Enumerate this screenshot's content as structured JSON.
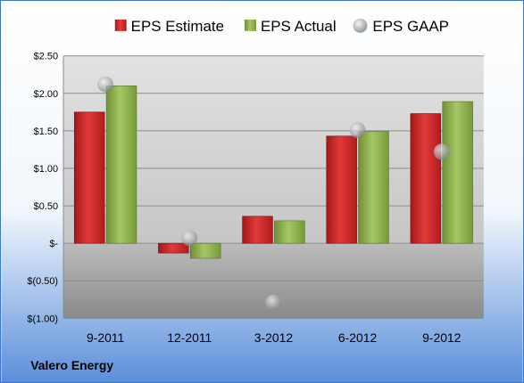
{
  "chart_data": {
    "type": "bar",
    "company": "Valero Energy",
    "categories": [
      "9-2011",
      "12-2011",
      "3-2012",
      "6-2012",
      "9-2012"
    ],
    "series": [
      {
        "name": "EPS Estimate",
        "kind": "bar",
        "color": "#d62728",
        "values": [
          1.75,
          -0.13,
          0.36,
          1.43,
          1.73
        ]
      },
      {
        "name": "EPS Actual",
        "kind": "bar",
        "color": "#8db04a",
        "values": [
          2.1,
          -0.2,
          0.3,
          1.49,
          1.89
        ]
      },
      {
        "name": "EPS GAAP",
        "kind": "marker",
        "color": "#a0a4a8",
        "values": [
          2.12,
          0.07,
          -0.79,
          1.51,
          1.22
        ]
      }
    ],
    "y_ticks": [
      "$2.50",
      "$2.00",
      "$1.50",
      "$1.00",
      "$0.50",
      "$-",
      "$(0.50)",
      "$(1.00)"
    ],
    "y_tick_values": [
      2.5,
      2.0,
      1.5,
      1.0,
      0.5,
      0,
      -0.5,
      -1.0
    ],
    "ylim": [
      -1.0,
      2.5
    ],
    "grid": true,
    "legend_position": "top"
  }
}
